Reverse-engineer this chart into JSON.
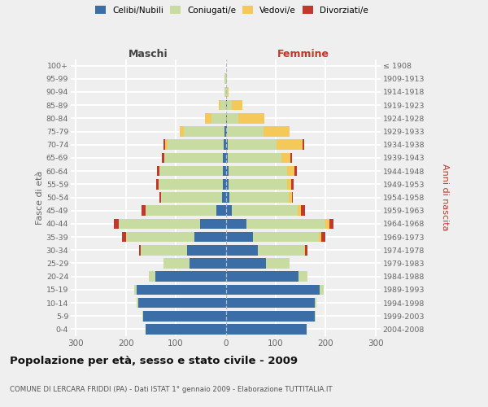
{
  "age_groups": [
    "0-4",
    "5-9",
    "10-14",
    "15-19",
    "20-24",
    "25-29",
    "30-34",
    "35-39",
    "40-44",
    "45-49",
    "50-54",
    "55-59",
    "60-64",
    "65-69",
    "70-74",
    "75-79",
    "80-84",
    "85-89",
    "90-94",
    "95-99",
    "100+"
  ],
  "birth_years": [
    "2004-2008",
    "1999-2003",
    "1994-1998",
    "1989-1993",
    "1984-1988",
    "1979-1983",
    "1974-1978",
    "1969-1973",
    "1964-1968",
    "1959-1963",
    "1954-1958",
    "1949-1953",
    "1944-1948",
    "1939-1943",
    "1934-1938",
    "1929-1933",
    "1924-1928",
    "1919-1923",
    "1914-1918",
    "1909-1913",
    "≤ 1908"
  ],
  "males": {
    "celibi": [
      160,
      165,
      175,
      178,
      140,
      72,
      78,
      62,
      52,
      18,
      8,
      6,
      5,
      5,
      4,
      2,
      0,
      0,
      0,
      0,
      0
    ],
    "coniugati": [
      0,
      2,
      3,
      5,
      14,
      52,
      92,
      138,
      162,
      142,
      122,
      128,
      128,
      118,
      112,
      82,
      28,
      10,
      3,
      2,
      0
    ],
    "vedovi": [
      0,
      0,
      0,
      0,
      0,
      0,
      0,
      0,
      0,
      0,
      0,
      0,
      0,
      0,
      6,
      8,
      14,
      4,
      0,
      0,
      0
    ],
    "divorziati": [
      0,
      0,
      0,
      0,
      0,
      0,
      3,
      8,
      10,
      8,
      3,
      5,
      5,
      5,
      3,
      0,
      0,
      0,
      0,
      0,
      0
    ]
  },
  "females": {
    "nubili": [
      162,
      178,
      178,
      188,
      145,
      80,
      65,
      55,
      42,
      12,
      8,
      5,
      5,
      4,
      4,
      3,
      2,
      2,
      0,
      0,
      0
    ],
    "coniugate": [
      0,
      2,
      3,
      8,
      18,
      48,
      92,
      132,
      158,
      132,
      118,
      118,
      118,
      108,
      98,
      72,
      24,
      10,
      4,
      2,
      0
    ],
    "vedove": [
      0,
      0,
      0,
      0,
      0,
      0,
      2,
      4,
      8,
      6,
      6,
      8,
      14,
      18,
      52,
      52,
      52,
      22,
      2,
      1,
      0
    ],
    "divorziate": [
      0,
      0,
      0,
      0,
      0,
      0,
      5,
      8,
      8,
      8,
      3,
      5,
      6,
      3,
      3,
      0,
      0,
      0,
      0,
      0,
      0
    ]
  },
  "colors": {
    "celibi": "#3b6ea6",
    "coniugati": "#c8dca2",
    "vedovi": "#f5c85a",
    "divorziati": "#c0392b"
  },
  "xlim": 310,
  "title": "Popolazione per età, sesso e stato civile - 2009",
  "subtitle": "COMUNE DI LERCARA FRIDDI (PA) - Dati ISTAT 1° gennaio 2009 - Elaborazione TUTTITALIA.IT",
  "ylabel_left": "Fasce di età",
  "ylabel_right": "Anni di nascita",
  "xlabel_left": "Maschi",
  "xlabel_right": "Femmine",
  "bg_color": "#efefef",
  "grid_color": "#ffffff"
}
